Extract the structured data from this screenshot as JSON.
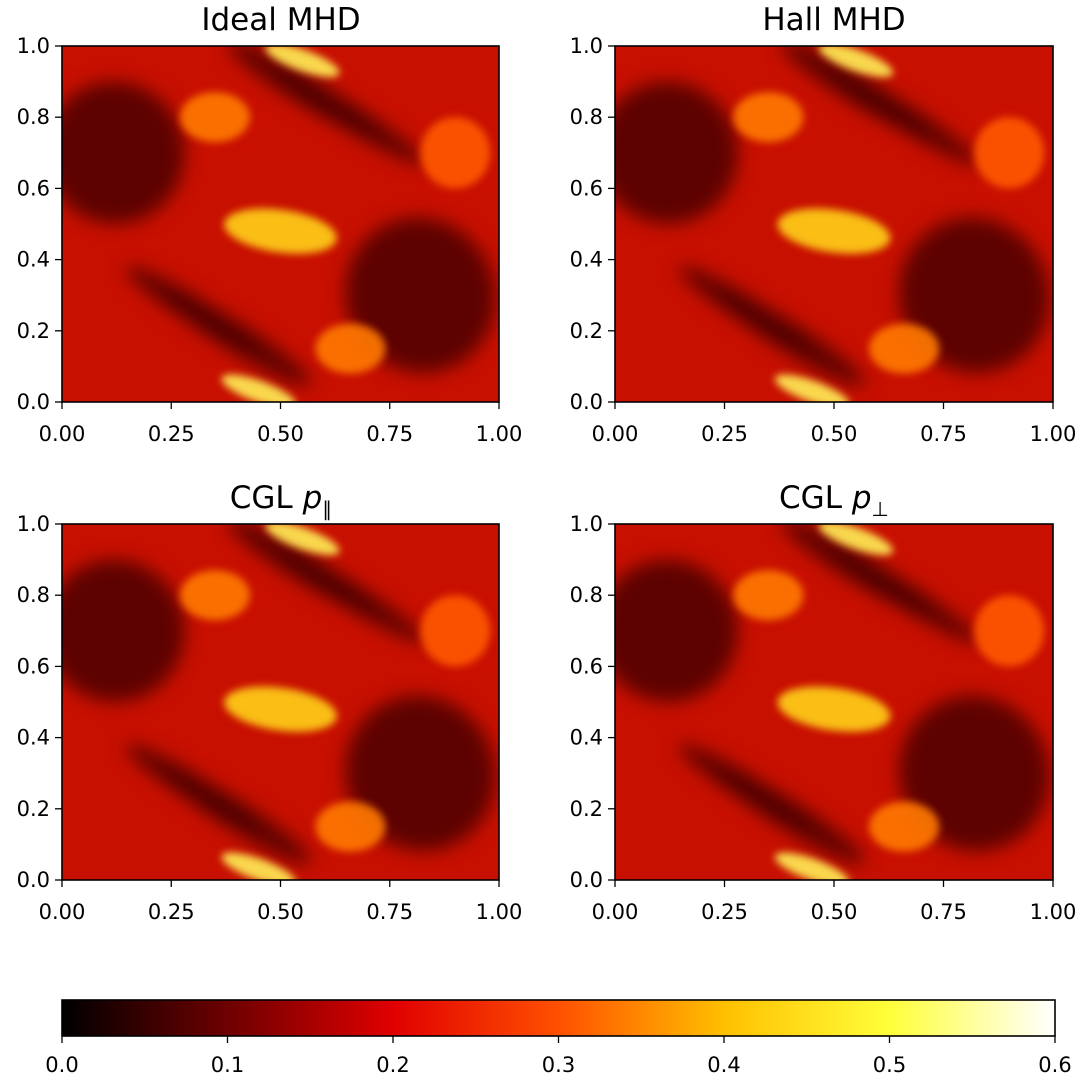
{
  "chart_data": [
    {
      "type": "heatmap",
      "title": "Ideal MHD",
      "xlim": [
        0,
        1
      ],
      "ylim": [
        0,
        1
      ],
      "xticks": [
        "0.00",
        "0.25",
        "0.50",
        "0.75",
        "1.00"
      ],
      "yticks": [
        "0.0",
        "0.2",
        "0.4",
        "0.6",
        "0.8",
        "1.0"
      ],
      "colormap": "hot",
      "value_range": [
        0.0,
        0.6
      ]
    },
    {
      "type": "heatmap",
      "title": "Hall MHD",
      "xlim": [
        0,
        1
      ],
      "ylim": [
        0,
        1
      ],
      "xticks": [
        "0.00",
        "0.25",
        "0.50",
        "0.75",
        "1.00"
      ],
      "yticks": [
        "0.0",
        "0.2",
        "0.4",
        "0.6",
        "0.8",
        "1.0"
      ],
      "colormap": "hot",
      "value_range": [
        0.0,
        0.6
      ]
    },
    {
      "type": "heatmap",
      "title": "CGL",
      "title_symbol": "p",
      "title_subscript": "∥",
      "xlim": [
        0,
        1
      ],
      "ylim": [
        0,
        1
      ],
      "xticks": [
        "0.00",
        "0.25",
        "0.50",
        "0.75",
        "1.00"
      ],
      "yticks": [
        "0.0",
        "0.2",
        "0.4",
        "0.6",
        "0.8",
        "1.0"
      ],
      "colormap": "hot",
      "value_range": [
        0.0,
        0.6
      ]
    },
    {
      "type": "heatmap",
      "title": "CGL",
      "title_symbol": "p",
      "title_subscript": "⊥",
      "xlim": [
        0,
        1
      ],
      "ylim": [
        0,
        1
      ],
      "xticks": [
        "0.00",
        "0.25",
        "0.50",
        "0.75",
        "1.00"
      ],
      "yticks": [
        "0.0",
        "0.2",
        "0.4",
        "0.6",
        "0.8",
        "1.0"
      ],
      "colormap": "hot",
      "value_range": [
        0.0,
        0.6
      ]
    }
  ],
  "colorbar": {
    "colormap": "hot",
    "range": [
      0.0,
      0.6
    ],
    "ticks": [
      "0.0",
      "0.1",
      "0.2",
      "0.3",
      "0.4",
      "0.5",
      "0.6"
    ],
    "colors": [
      "#000000",
      "#6e0000",
      "#e00000",
      "#ff5000",
      "#ffc000",
      "#ffff3a",
      "#ffffff"
    ]
  }
}
